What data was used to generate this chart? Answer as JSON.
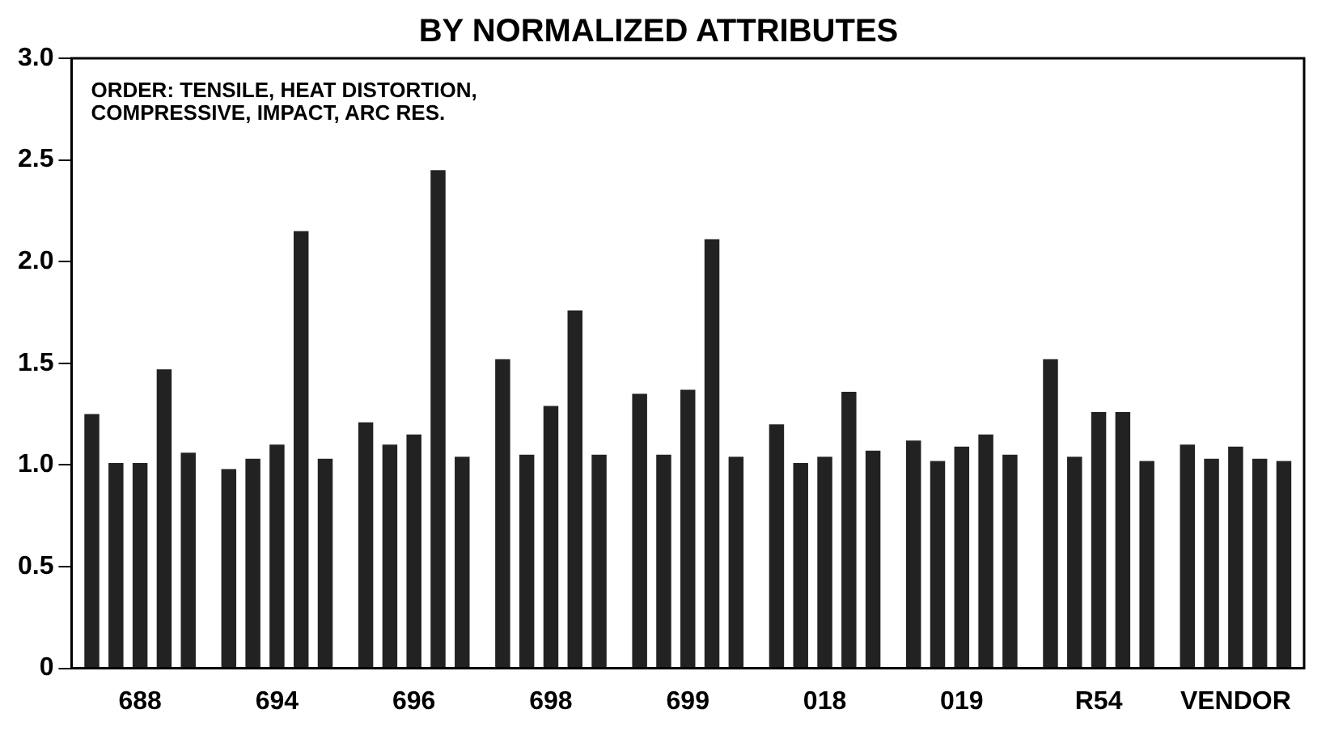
{
  "chart_data": {
    "type": "bar",
    "title": "BY NORMALIZED ATTRIBUTES",
    "categories": [
      "688",
      "694",
      "696",
      "698",
      "699",
      "018",
      "019",
      "R54",
      "VENDOR"
    ],
    "series": [
      {
        "color": "#222222",
        "values": [
          1.25,
          0.98,
          1.21,
          1.52,
          1.35,
          1.2,
          1.12,
          1.52,
          1.1
        ]
      },
      {
        "color": "#222222",
        "values": [
          1.01,
          1.03,
          1.1,
          1.05,
          1.05,
          1.01,
          1.02,
          1.04,
          1.03
        ]
      },
      {
        "color": "#222222",
        "values": [
          1.01,
          1.1,
          1.15,
          1.29,
          1.37,
          1.04,
          1.09,
          1.26,
          1.09
        ]
      },
      {
        "color": "#222222",
        "values": [
          1.47,
          2.15,
          2.45,
          1.76,
          2.11,
          1.36,
          1.15,
          1.26,
          1.03
        ]
      },
      {
        "color": "#222222",
        "values": [
          1.06,
          1.03,
          1.04,
          1.05,
          1.04,
          1.07,
          1.05,
          1.02,
          1.02
        ]
      }
    ],
    "ylim": [
      0,
      3
    ],
    "yticks": [
      0,
      {
        "value": 0.5,
        "label": "0.5"
      },
      {
        "value": 1,
        "label": "1.0"
      },
      {
        "value": 1.5,
        "label": "1.5"
      },
      {
        "value": 2,
        "label": "2.0"
      },
      {
        "value": 2.5,
        "label": "2.5"
      },
      {
        "value": 3,
        "label": "3.0"
      }
    ],
    "annotations": [
      "ORDER: TENSILE, HEAT DISTORTION,\nCOMPRESSIVE, IMPACT, ARC RES."
    ],
    "grid": false,
    "legend": false
  }
}
